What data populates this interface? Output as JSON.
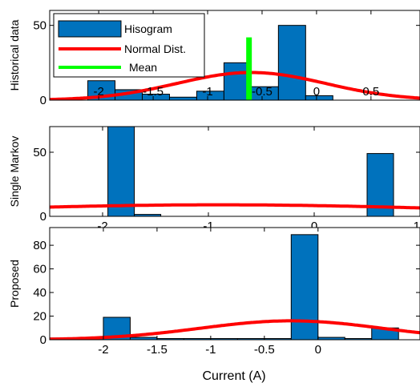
{
  "colors": {
    "bar_fill": "#0072BD",
    "bar_edge": "#000000",
    "normal_line": "#FF0000",
    "mean_line": "#00FF00",
    "axis": "#000000",
    "background": "#FFFFFF"
  },
  "chart_data": [
    {
      "type": "bar",
      "ylabel": "Historical data",
      "xlabel": "",
      "xlim": [
        -2.45,
        0.95
      ],
      "ylim": [
        0,
        60
      ],
      "xticks": [
        -2,
        -1.5,
        -1,
        -0.5,
        0,
        0.5
      ],
      "xtick_labels": [
        "-2",
        "-1.5",
        "-1",
        "-0.5",
        "0",
        "0.5"
      ],
      "xtick_position": "top",
      "yticks": [
        0,
        50
      ],
      "ytick_labels": [
        "0",
        "50"
      ],
      "grid": false,
      "legend_position": "top-left",
      "legend": [
        {
          "label": "Hisogram",
          "type": "bar"
        },
        {
          "label": "Normal Dist.",
          "type": "line"
        },
        {
          "label": "Mean",
          "type": "line"
        }
      ],
      "histogram": {
        "name": "Hisogram",
        "bins": [
          {
            "x0": -2.1,
            "x1": -1.85,
            "value": 13
          },
          {
            "x0": -1.85,
            "x1": -1.6,
            "value": 7
          },
          {
            "x0": -1.6,
            "x1": -1.35,
            "value": 4
          },
          {
            "x0": -1.35,
            "x1": -1.1,
            "value": 2
          },
          {
            "x0": -1.1,
            "x1": -0.85,
            "value": 6
          },
          {
            "x0": -0.85,
            "x1": -0.6,
            "value": 25
          },
          {
            "x0": -0.6,
            "x1": -0.35,
            "value": 9
          },
          {
            "x0": -0.35,
            "x1": -0.1,
            "value": 50
          },
          {
            "x0": -0.1,
            "x1": 0.15,
            "value": 3
          }
        ]
      },
      "normal_dist": {
        "name": "Normal Dist.",
        "mean": -0.6,
        "sigma": 0.68,
        "peak": 18.5
      },
      "mean_line": {
        "name": "Mean",
        "x": -0.62,
        "y_range": [
          0,
          42
        ]
      }
    },
    {
      "type": "bar",
      "ylabel": "Single Markov",
      "xlabel": "",
      "xlim": [
        -2.5,
        1.0
      ],
      "ylim": [
        0,
        70
      ],
      "xticks": [
        -2,
        -1,
        0,
        1
      ],
      "xtick_labels": [
        "-2",
        "-1",
        "0",
        "1"
      ],
      "xtick_position": "bottom",
      "yticks": [
        0,
        50
      ],
      "ytick_labels": [
        "0",
        "50"
      ],
      "grid": false,
      "histogram": {
        "name": "Hisogram",
        "bins": [
          {
            "x0": -1.95,
            "x1": -1.7,
            "value": 70
          },
          {
            "x0": -1.7,
            "x1": -1.45,
            "value": 1.5
          },
          {
            "x0": 0.5,
            "x1": 0.75,
            "value": 49
          }
        ]
      },
      "normal_dist": {
        "name": "Normal Dist.",
        "mean": -0.9,
        "sigma": 2.4,
        "peak": 9
      }
    },
    {
      "type": "bar",
      "ylabel": "Proposed",
      "xlabel": "Current (A)",
      "xlim": [
        -2.5,
        0.95
      ],
      "ylim": [
        0,
        95
      ],
      "xticks": [
        -2,
        -1.5,
        -1,
        -0.5,
        0
      ],
      "xtick_labels": [
        "-2",
        "-1.5",
        "-1",
        "-0.5",
        "0"
      ],
      "xtick_position": "bottom",
      "yticks": [
        0,
        20,
        40,
        60,
        80
      ],
      "ytick_labels": [
        "0",
        "20",
        "40",
        "60",
        "80"
      ],
      "grid": false,
      "histogram": {
        "name": "Hisogram",
        "bins": [
          {
            "x0": -2.5,
            "x1": -2.25,
            "value": 1.5
          },
          {
            "x0": -2.25,
            "x1": -2.0,
            "value": 1
          },
          {
            "x0": -2.0,
            "x1": -1.75,
            "value": 19
          },
          {
            "x0": -1.75,
            "x1": -1.5,
            "value": 2
          },
          {
            "x0": -1.5,
            "x1": -1.25,
            "value": 1
          },
          {
            "x0": -1.25,
            "x1": -1.0,
            "value": 1
          },
          {
            "x0": -1.0,
            "x1": -0.75,
            "value": 1
          },
          {
            "x0": -0.75,
            "x1": -0.5,
            "value": 1
          },
          {
            "x0": -0.5,
            "x1": -0.25,
            "value": 1
          },
          {
            "x0": -0.25,
            "x1": 0.0,
            "value": 89
          },
          {
            "x0": 0.0,
            "x1": 0.25,
            "value": 2
          },
          {
            "x0": 0.25,
            "x1": 0.5,
            "value": 1
          },
          {
            "x0": 0.5,
            "x1": 0.75,
            "value": 10
          }
        ]
      },
      "normal_dist": {
        "name": "Normal Dist.",
        "mean": -0.25,
        "sigma": 0.85,
        "peak": 16
      }
    }
  ]
}
